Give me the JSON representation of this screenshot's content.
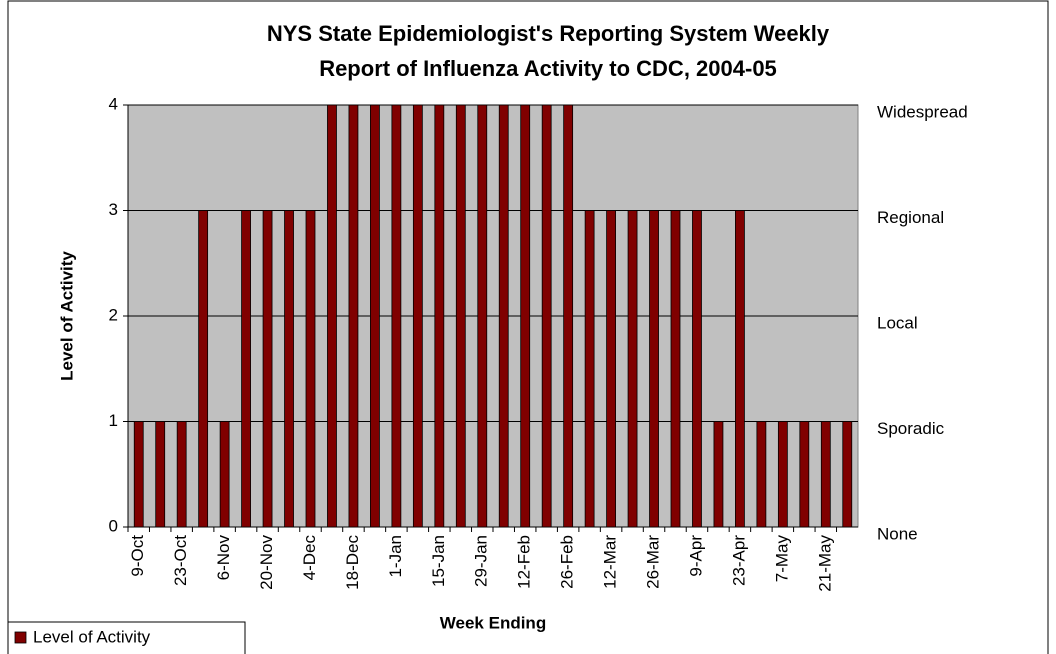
{
  "chart_data": {
    "type": "bar",
    "title": [
      "NYS State Epidemiologist's Reporting System Weekly",
      "Report of Influenza Activity to CDC, 2004-05"
    ],
    "x_label": "Week Ending",
    "y_label": "Level of Activity",
    "categories": [
      "9-Oct",
      null,
      "23-Oct",
      null,
      "6-Nov",
      null,
      "20-Nov",
      null,
      "4-Dec",
      null,
      "18-Dec",
      null,
      "1-Jan",
      null,
      "15-Jan",
      null,
      "29-Jan",
      null,
      "12-Feb",
      null,
      "26-Feb",
      null,
      "12-Mar",
      null,
      "26-Mar",
      null,
      "9-Apr",
      null,
      "23-Apr",
      null,
      "7-May",
      null,
      "21-May",
      null
    ],
    "series": [
      {
        "name": "Level of Activity",
        "color": "#800000",
        "values": [
          1,
          1,
          1,
          3,
          1,
          3,
          3,
          3,
          3,
          4,
          4,
          4,
          4,
          4,
          4,
          4,
          4,
          4,
          4,
          4,
          4,
          3,
          3,
          3,
          3,
          3,
          3,
          1,
          3,
          1,
          1,
          1,
          1,
          1
        ]
      }
    ],
    "ylim": [
      0,
      4
    ],
    "yticks": [
      0,
      1,
      2,
      3,
      4
    ],
    "y2lim": [
      0,
      4
    ],
    "y2ticks": [
      {
        "value": 0,
        "label": "None"
      },
      {
        "value": 1,
        "label": "Sporadic"
      },
      {
        "value": 2,
        "label": "Local"
      },
      {
        "value": 3,
        "label": "Regional"
      },
      {
        "value": 4,
        "label": "Widespread"
      }
    ],
    "grid": true,
    "plot_background": "#c0c0c0",
    "legend": "bottom-left"
  }
}
